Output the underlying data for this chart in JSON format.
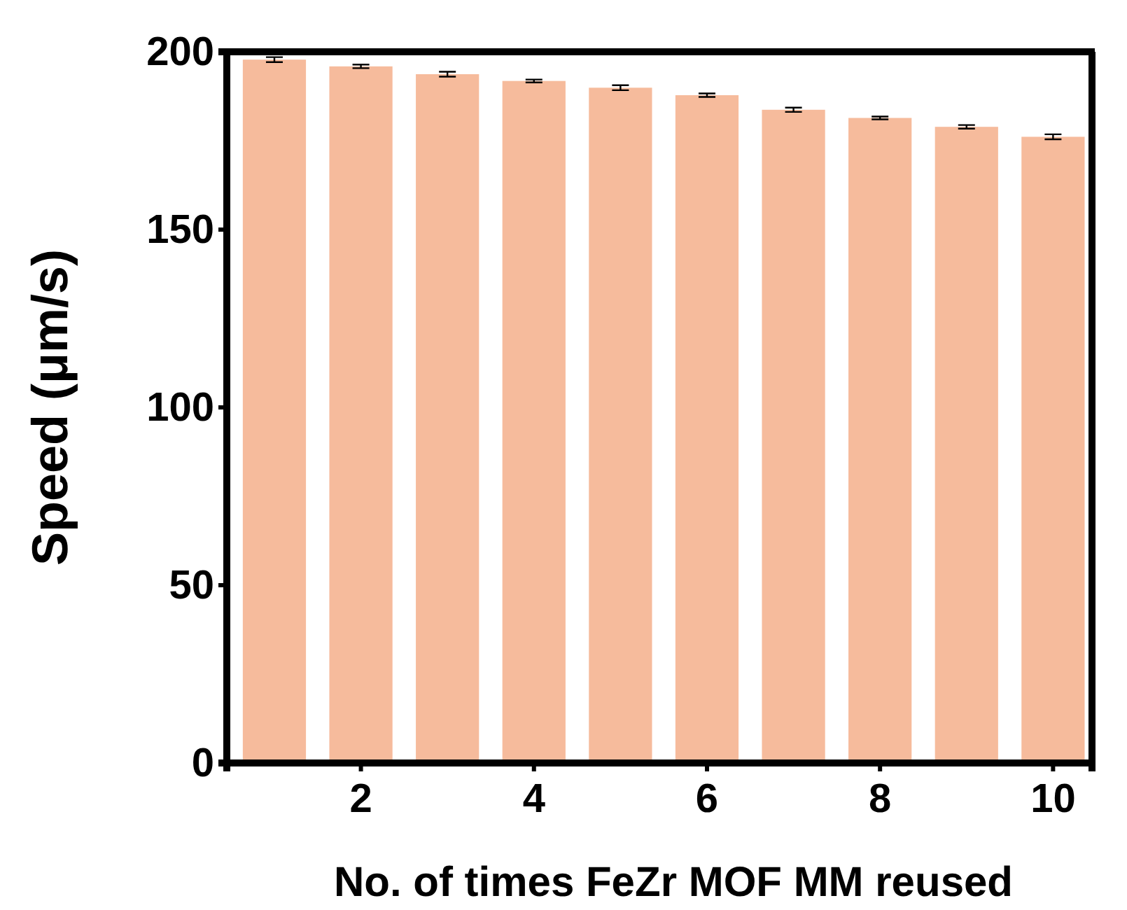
{
  "chart_data": {
    "type": "bar",
    "xlabel": "No. of times FeZr MOF MM reused",
    "ylabel": "Speed (μm/s)",
    "x": [
      1,
      2,
      3,
      4,
      5,
      6,
      7,
      8,
      9,
      10
    ],
    "values": [
      197.8,
      195.9,
      193.7,
      191.8,
      189.9,
      187.8,
      183.7,
      181.4,
      178.9,
      176.1
    ],
    "errors": [
      0.7,
      0.5,
      0.7,
      0.4,
      0.7,
      0.5,
      0.6,
      0.4,
      0.5,
      0.7
    ],
    "color": "#f6bb9c",
    "xlim": [
      0.45,
      10.45
    ],
    "xticks": [
      2,
      4,
      6,
      8,
      10
    ],
    "ylim": [
      0,
      200
    ],
    "yticks": [
      0,
      50,
      100,
      150,
      200
    ],
    "grid": false
  }
}
